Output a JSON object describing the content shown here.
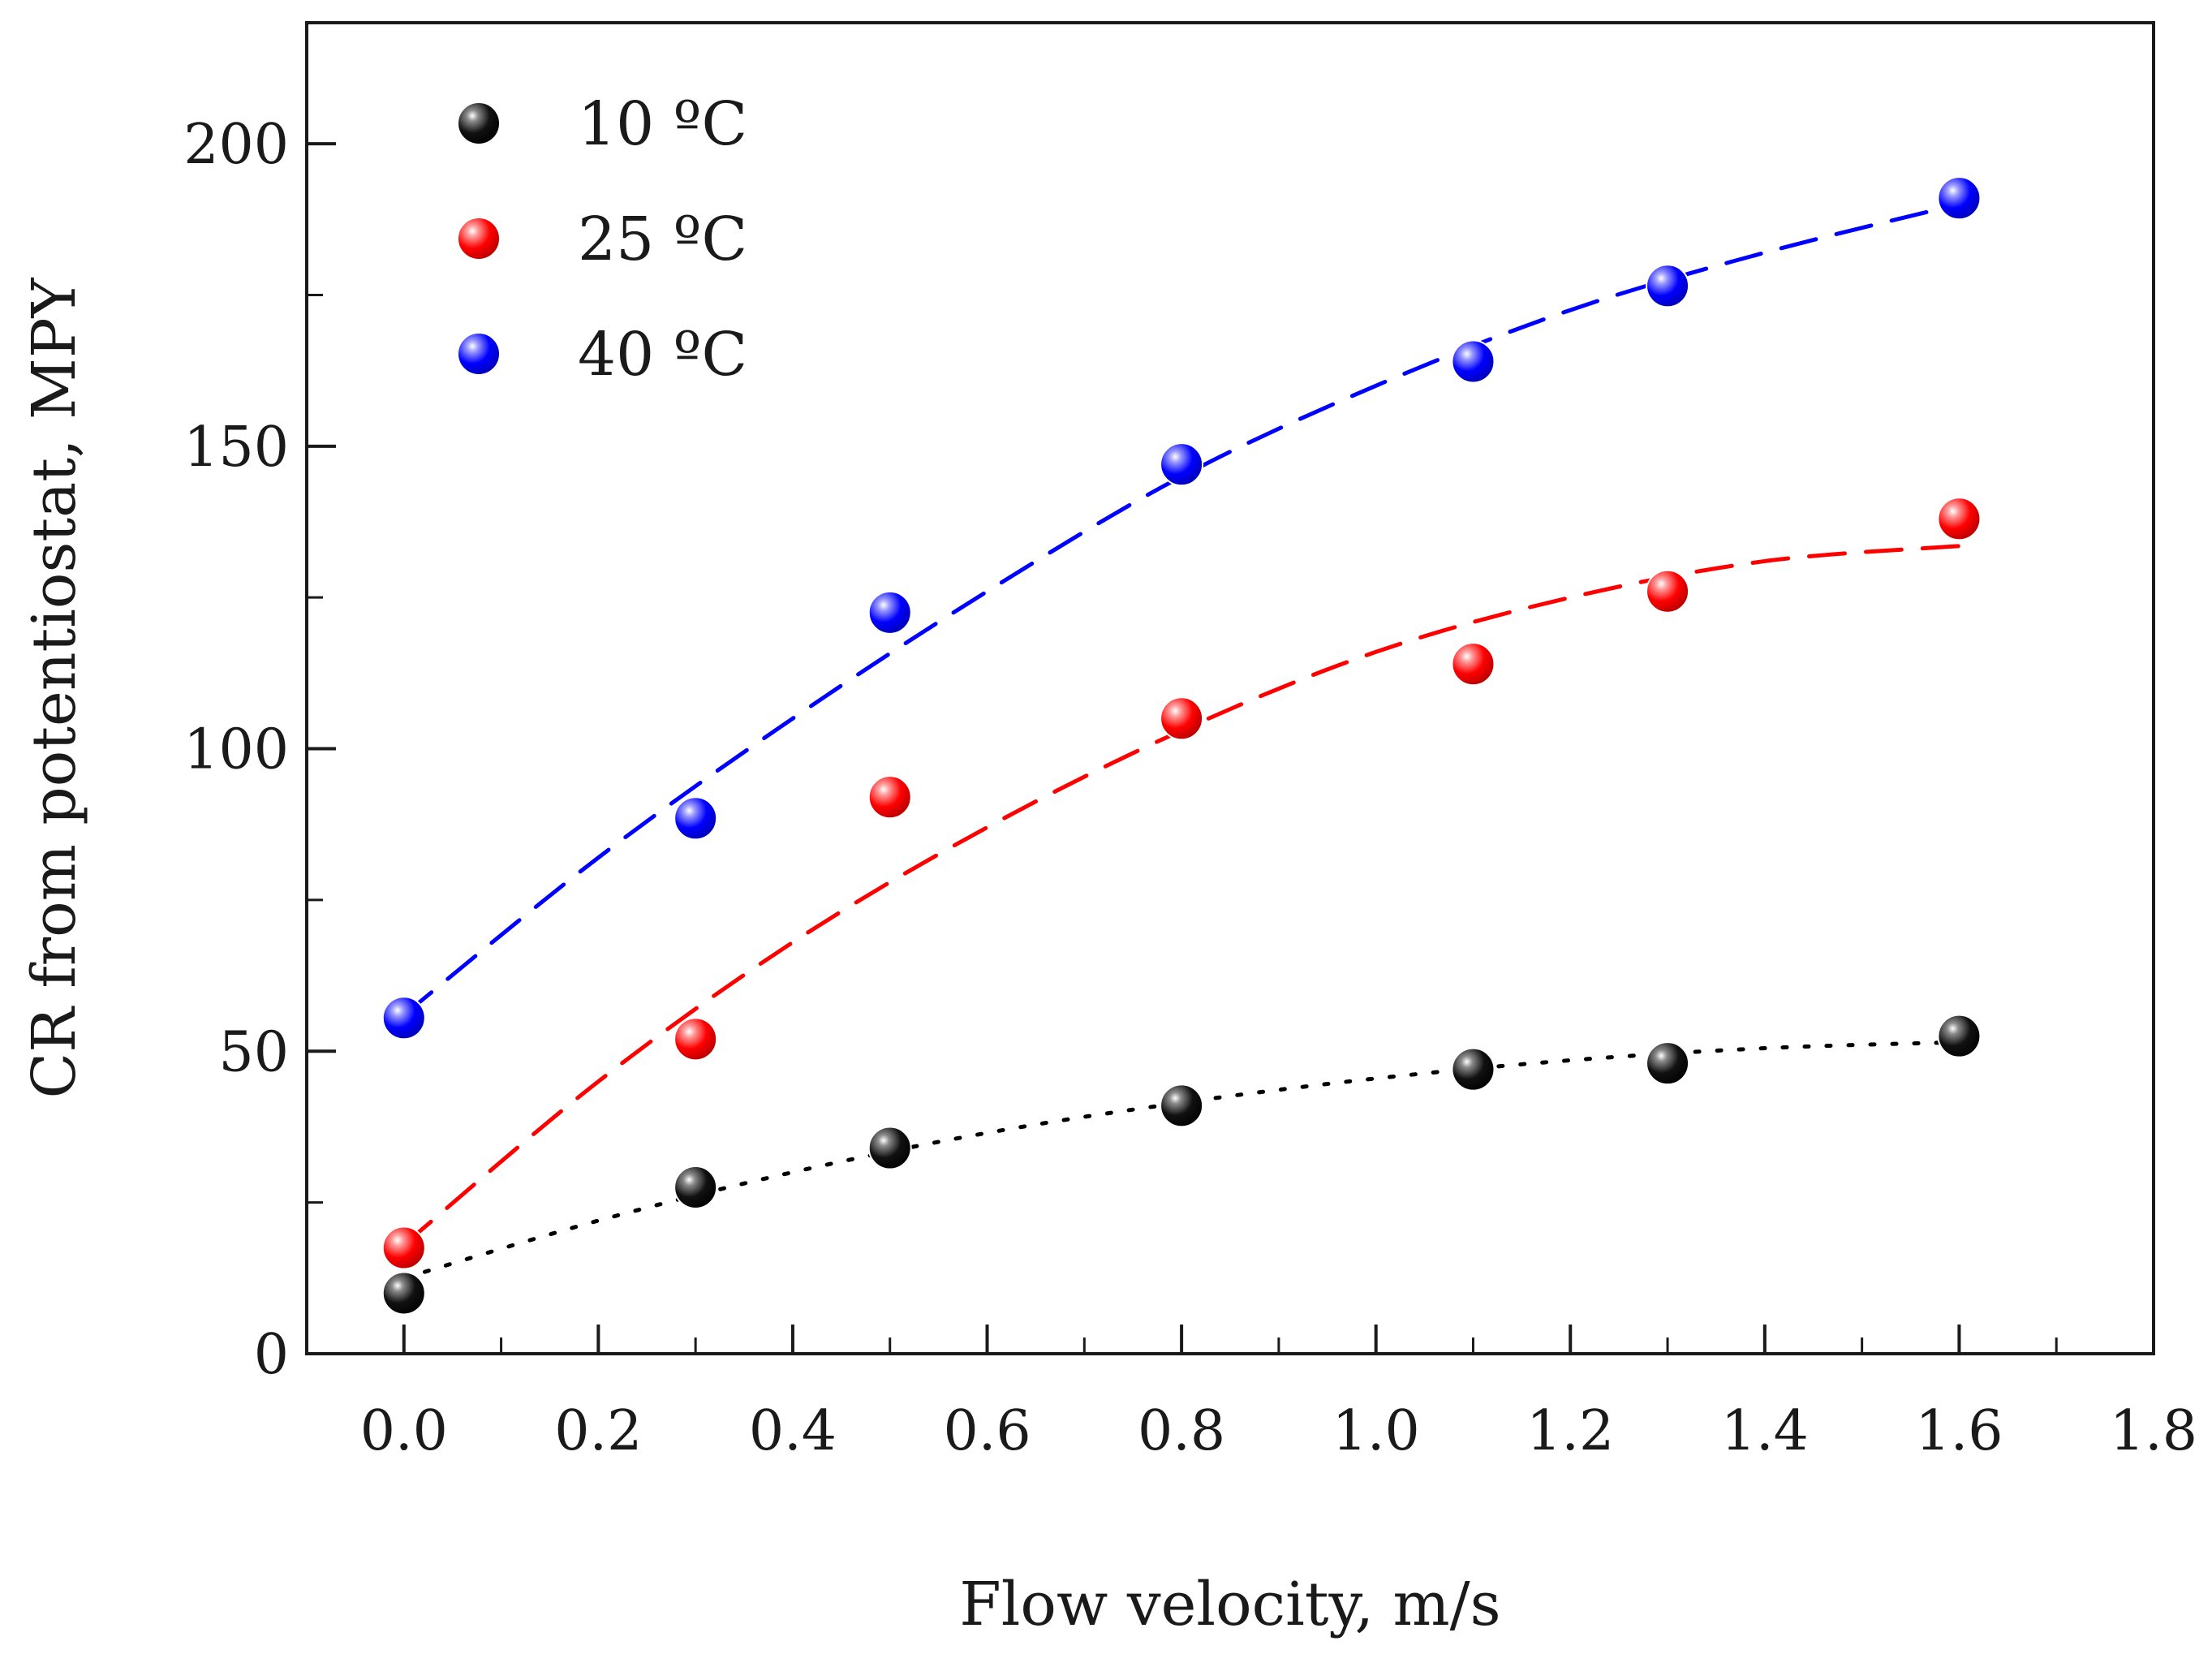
{
  "chart_data": {
    "type": "scatter",
    "title": "",
    "xlabel": "Flow velocity, m/s",
    "ylabel": "CR from potentiostat, MPY",
    "xlim": [
      -0.1,
      1.8
    ],
    "ylim": [
      0,
      220
    ],
    "x_ticks": [
      0.0,
      0.2,
      0.4,
      0.6,
      0.8,
      1.0,
      1.2,
      1.4,
      1.6,
      1.8
    ],
    "x_tick_labels": [
      "0.0",
      "0.2",
      "0.4",
      "0.6",
      "0.8",
      "1.0",
      "1.2",
      "1.4",
      "1.6",
      "1.8"
    ],
    "y_ticks": [
      0,
      50,
      100,
      150,
      200
    ],
    "y_tick_labels": [
      "0",
      "50",
      "100",
      "150",
      "200"
    ],
    "grid": false,
    "legend_position": "top-left",
    "series": [
      {
        "name": "10 ºC",
        "color": "#000000",
        "fit_style": "dotted",
        "x": [
          0.0,
          0.3,
          0.5,
          0.8,
          1.1,
          1.3,
          1.6
        ],
        "y": [
          10,
          27.5,
          34,
          41,
          47,
          48,
          52.5
        ],
        "fit_x": [
          0.0,
          0.2,
          0.4,
          0.6,
          0.8,
          1.0,
          1.2,
          1.4,
          1.6
        ],
        "fit_y": [
          12.5,
          22,
          30,
          36.5,
          41.5,
          45.5,
          48.5,
          50.5,
          51.5
        ]
      },
      {
        "name": "25 ºC",
        "color": "#ff0000",
        "fit_style": "dashed",
        "x": [
          0.0,
          0.3,
          0.5,
          0.8,
          1.1,
          1.3,
          1.6
        ],
        "y": [
          17.5,
          52,
          92,
          105,
          114,
          126,
          138
        ],
        "fit_x": [
          0.0,
          0.2,
          0.4,
          0.6,
          0.8,
          1.0,
          1.2,
          1.4,
          1.6
        ],
        "fit_y": [
          18,
          45,
          68,
          87,
          103,
          116,
          125,
          131,
          133.5
        ]
      },
      {
        "name": "40 ºC",
        "color": "#0000ff",
        "fit_style": "dashed",
        "x": [
          0.0,
          0.3,
          0.5,
          0.8,
          1.1,
          1.3,
          1.6
        ],
        "y": [
          55.5,
          88.5,
          122.5,
          147,
          164,
          176.5,
          191
        ],
        "fit_x": [
          0.0,
          0.2,
          0.4,
          0.6,
          0.8,
          1.0,
          1.2,
          1.4,
          1.6
        ],
        "fit_y": [
          56,
          82,
          105,
          126,
          145,
          160,
          172.5,
          182,
          190
        ]
      }
    ]
  }
}
